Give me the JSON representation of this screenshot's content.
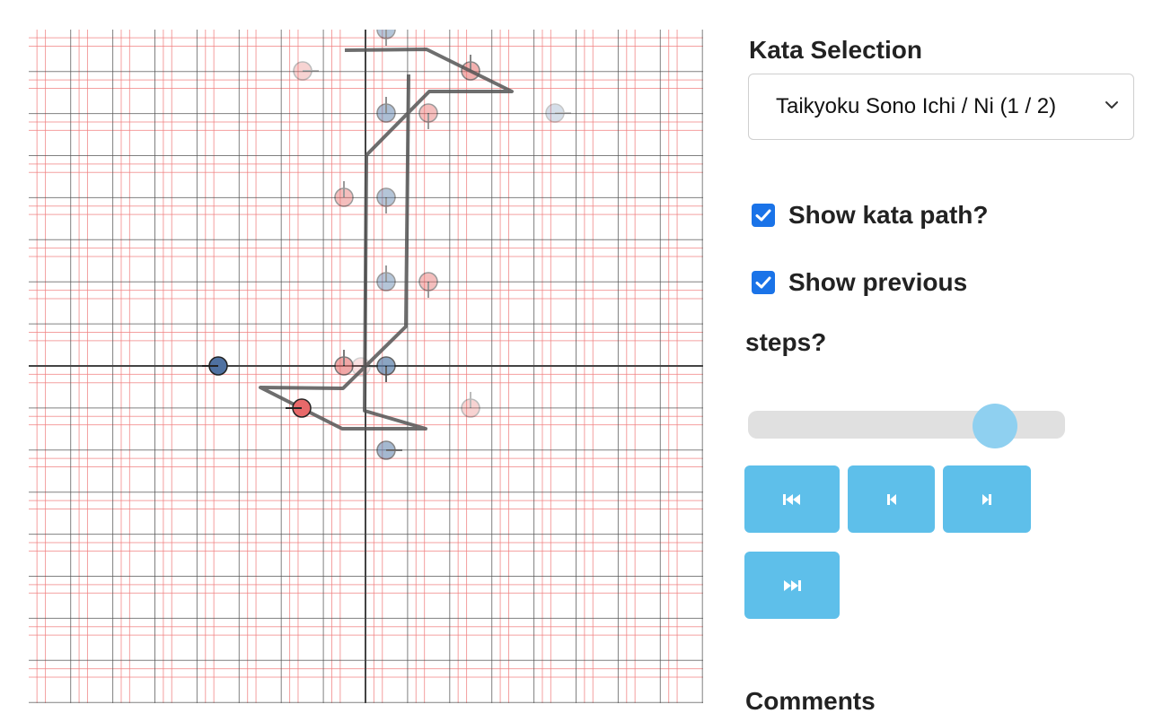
{
  "panel": {
    "title": "Kata Selection",
    "kata_select": {
      "selected": "Taikyoku Sono Ichi / Ni (1 / 2)"
    },
    "show_path": {
      "label": "Show kata path?",
      "checked": true
    },
    "show_previous": {
      "label_line1": "Show previous",
      "label_line2": "steps?",
      "checked": true
    },
    "step_slider": {
      "value_fraction": 0.78
    },
    "buttons": {
      "first": "skip-first-icon",
      "prev": "step-back-icon",
      "next": "step-forward-icon",
      "last": "skip-last-icon"
    },
    "comments_title": "Comments"
  },
  "colors": {
    "button_bg": "#5ebfea",
    "slider_track": "#e0e0e0",
    "slider_thumb": "#8fd0f0",
    "checkbox": "#1a73e8",
    "blue_marker": "#5b7faa",
    "red_marker": "#e8706e",
    "path": "#555555",
    "grid_black": "#555555",
    "grid_red": "#f08080"
  }
}
